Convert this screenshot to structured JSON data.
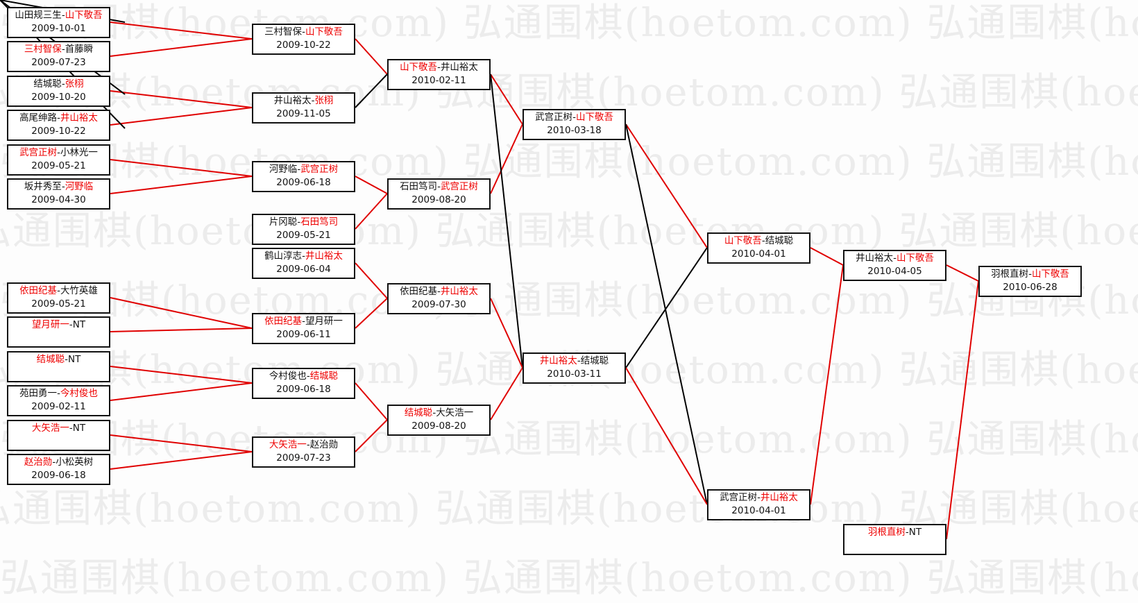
{
  "watermark": "弘通围棋(hoetom.com) 弘通围棋(hoetom.com) 弘通围棋(hoetom.com)",
  "colors": {
    "winner": "#e00000",
    "line_win": "#e00000",
    "line_other": "#000000"
  },
  "matches": [
    {
      "a": "山田规三生",
      "b": "山下敬吾",
      "winner": "b",
      "date": "2009-10-01"
    },
    {
      "a": "三村智保",
      "b": "首藤瞬",
      "winner": "a",
      "date": "2009-07-23"
    },
    {
      "a": "结城聪",
      "b": "张栩",
      "winner": "b",
      "date": "2009-10-20"
    },
    {
      "a": "高尾绅路",
      "b": "井山裕太",
      "winner": "b",
      "date": "2009-10-22"
    },
    {
      "a": "武宫正树",
      "b": "小林光一",
      "winner": "a",
      "date": "2009-05-21"
    },
    {
      "a": "坂井秀至",
      "b": "河野临",
      "winner": "b",
      "date": "2009-04-30"
    },
    {
      "a": "依田纪基",
      "b": "大竹英雄",
      "winner": "a",
      "date": "2009-05-21"
    },
    {
      "a": "望月研一",
      "b": "NT",
      "winner": "a",
      "date": ""
    },
    {
      "a": "结城聪",
      "b": "NT",
      "winner": "a",
      "date": ""
    },
    {
      "a": "苑田勇一",
      "b": "今村俊也",
      "winner": "b",
      "date": "2009-02-11"
    },
    {
      "a": "大矢浩一",
      "b": "NT",
      "winner": "a",
      "date": ""
    },
    {
      "a": "赵治勋",
      "b": "小松英树",
      "winner": "a",
      "date": "2009-06-18"
    },
    {
      "a": "三村智保",
      "b": "山下敬吾",
      "winner": "b",
      "date": "2009-10-22"
    },
    {
      "a": "井山裕太",
      "b": "张栩",
      "winner": "b",
      "date": "2009-11-05"
    },
    {
      "a": "河野临",
      "b": "武宫正树",
      "winner": "b",
      "date": "2009-06-18"
    },
    {
      "a": "片冈聪",
      "b": "石田笃司",
      "winner": "b",
      "date": "2009-05-21"
    },
    {
      "a": "鹤山淳志",
      "b": "井山裕太",
      "winner": "b",
      "date": "2009-06-04"
    },
    {
      "a": "依田纪基",
      "b": "望月研一",
      "winner": "a",
      "date": "2009-06-11"
    },
    {
      "a": "今村俊也",
      "b": "结城聪",
      "winner": "b",
      "date": "2009-06-18"
    },
    {
      "a": "大矢浩一",
      "b": "赵治勋",
      "winner": "a",
      "date": "2009-07-23"
    },
    {
      "a": "山下敬吾",
      "b": "井山裕太",
      "winner": "a",
      "date": "2010-02-11"
    },
    {
      "a": "石田笃司",
      "b": "武宫正树",
      "winner": "b",
      "date": "2009-08-20"
    },
    {
      "a": "依田纪基",
      "b": "井山裕太",
      "winner": "b",
      "date": "2009-07-30"
    },
    {
      "a": "结城聪",
      "b": "大矢浩一",
      "winner": "a",
      "date": "2009-08-20"
    },
    {
      "a": "武宫正树",
      "b": "山下敬吾",
      "winner": "b",
      "date": "2010-03-18"
    },
    {
      "a": "井山裕太",
      "b": "结城聪",
      "winner": "a",
      "date": "2010-03-11"
    },
    {
      "a": "山下敬吾",
      "b": "结城聪",
      "winner": "a",
      "date": "2010-04-01"
    },
    {
      "a": "武宫正树",
      "b": "井山裕太",
      "winner": "b",
      "date": "2010-04-01"
    },
    {
      "a": "井山裕太",
      "b": "山下敬吾",
      "winner": "b",
      "date": "2010-04-05"
    },
    {
      "a": "羽根直树",
      "b": "NT",
      "winner": "a",
      "date": ""
    },
    {
      "a": "羽根直树",
      "b": "山下敬吾",
      "winner": "b",
      "date": "2010-06-28"
    }
  ]
}
